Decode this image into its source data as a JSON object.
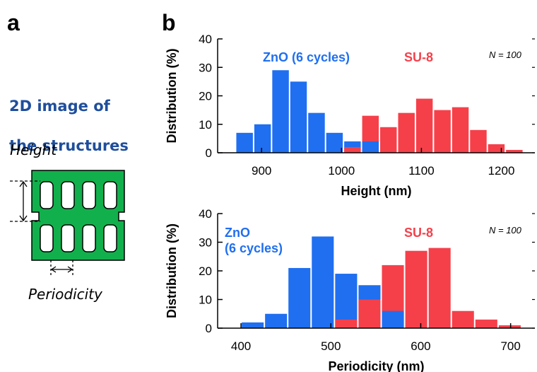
{
  "panel_a": {
    "label": "a",
    "title_lines": [
      "2D image of",
      "the structures"
    ],
    "height_label": "Height",
    "periodicity_label": "Periodicity"
  },
  "panel_b": {
    "label": "b"
  },
  "chart_data": [
    {
      "type": "histogram",
      "xlabel": "Height (nm)",
      "ylabel": "Distribution (%)",
      "annotation": "N = 100",
      "bins": [
        867.5,
        890,
        912.5,
        935,
        957.5,
        980,
        1002.5,
        1025,
        1047.5,
        1070,
        1092.5,
        1115,
        1137.5,
        1160,
        1182.5,
        1205,
        1227.5
      ],
      "series": [
        {
          "name": "ZnO (6 cycles)",
          "color": "#1f6ff0",
          "values": [
            7,
            10,
            29,
            25,
            14,
            7,
            4,
            4,
            null,
            null,
            null,
            null,
            null,
            null,
            null,
            null
          ]
        },
        {
          "name": "SU-8",
          "color": "#f5404a",
          "values": [
            null,
            null,
            null,
            null,
            null,
            null,
            2,
            13,
            9,
            14,
            19,
            15,
            16,
            8,
            3,
            1
          ]
        }
      ],
      "xlim": [
        845,
        1242
      ],
      "xticks": [
        900,
        1000,
        1100,
        1200
      ],
      "ylim": [
        0,
        40
      ],
      "yticks": [
        0,
        10,
        20,
        30,
        40
      ]
    },
    {
      "type": "histogram",
      "xlabel": "Periodicity (nm)",
      "ylabel": "Distribution (%)",
      "annotation": "N = 100",
      "bins": [
        400,
        426,
        452,
        478,
        504,
        530,
        556,
        582,
        608,
        634,
        660,
        686,
        712
      ],
      "series": [
        {
          "name": "ZnO\n(6 cycles)",
          "color": "#1f6ff0",
          "values": [
            2,
            5,
            21,
            32,
            19,
            15,
            6,
            null,
            null,
            null,
            null,
            null
          ]
        },
        {
          "name": "SU-8",
          "color": "#f5404a",
          "values": [
            null,
            null,
            null,
            null,
            3,
            10,
            22,
            27,
            28,
            6,
            3,
            1
          ]
        }
      ],
      "xlim": [
        374,
        727
      ],
      "xticks": [
        400,
        500,
        600,
        700
      ],
      "ylim": [
        0,
        40
      ],
      "yticks": [
        0,
        10,
        20,
        30,
        40
      ]
    }
  ]
}
